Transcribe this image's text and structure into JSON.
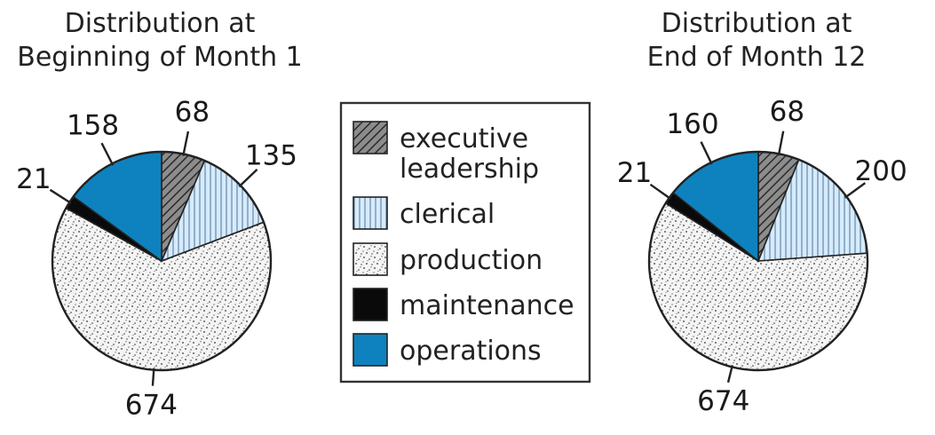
{
  "chart_data": [
    {
      "type": "pie",
      "title_lines": [
        "Distribution at",
        "Beginning of Month 1"
      ],
      "slices": [
        {
          "category": "executive leadership",
          "value": 68
        },
        {
          "category": "clerical",
          "value": 135
        },
        {
          "category": "production",
          "value": 674
        },
        {
          "category": "maintenance",
          "value": 21
        },
        {
          "category": "operations",
          "value": 158
        }
      ]
    },
    {
      "type": "pie",
      "title_lines": [
        "Distribution at",
        "End of Month 12"
      ],
      "slices": [
        {
          "category": "executive leadership",
          "value": 68
        },
        {
          "category": "clerical",
          "value": 200
        },
        {
          "category": "production",
          "value": 674
        },
        {
          "category": "maintenance",
          "value": 21
        },
        {
          "category": "operations",
          "value": 160
        }
      ]
    }
  ],
  "legend": {
    "placement": "center",
    "items": [
      {
        "key": "executive leadership",
        "lines": [
          "executive",
          "leadership"
        ],
        "pattern": "diagonal-hatch",
        "color": "#8c8c8c"
      },
      {
        "key": "clerical",
        "lines": [
          "clerical"
        ],
        "pattern": "vertical-lines",
        "color": "#cfe6f8"
      },
      {
        "key": "production",
        "lines": [
          "production"
        ],
        "pattern": "stipple",
        "color": "#f4f4f4"
      },
      {
        "key": "maintenance",
        "lines": [
          "maintenance"
        ],
        "pattern": "solid",
        "color": "#0a0a0a"
      },
      {
        "key": "operations",
        "lines": [
          "operations"
        ],
        "pattern": "solid",
        "color": "#0e82be"
      }
    ]
  }
}
